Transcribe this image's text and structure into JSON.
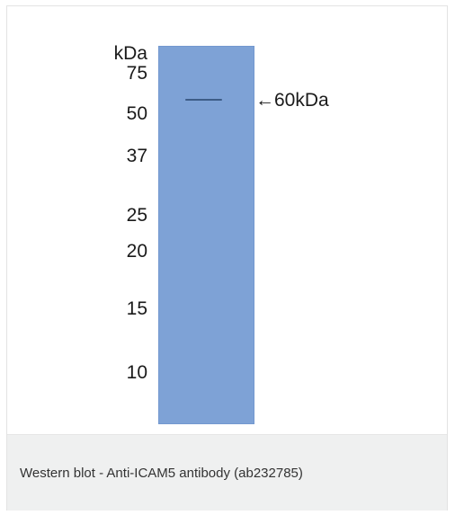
{
  "figure": {
    "unit_label": "kDa",
    "markers": [
      "75",
      "50",
      "37",
      "25",
      "20",
      "15",
      "10"
    ],
    "band_annotation": "←60kDa",
    "lane_color": "#7ea2d6",
    "band_color": "#3d5c87"
  },
  "caption": {
    "text": "Western blot - Anti-ICAM5 antibody (ab232785)"
  }
}
